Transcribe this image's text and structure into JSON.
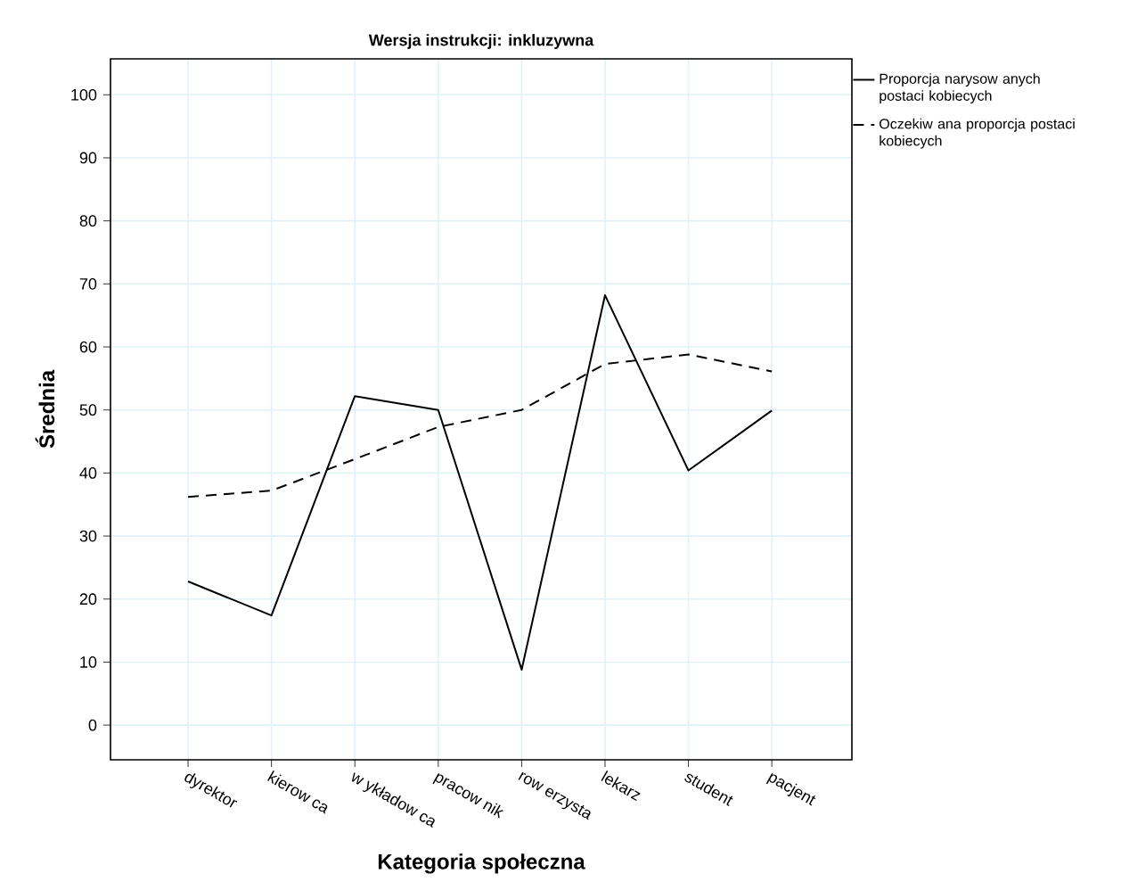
{
  "chart_data": {
    "type": "line",
    "title": "Wersja instrukcji: inkluzywna",
    "xlabel": "Kategoria społeczna",
    "ylabel": "Średnia",
    "categories": [
      "dyrektor",
      "kierow ca",
      "w ykładow ca",
      "pracow nik",
      "row erzysta",
      "lekarz",
      "student",
      "pacjent"
    ],
    "series": [
      {
        "name": "Proporcja narysow anych postaci kobiecych",
        "color": "#000000",
        "line_style": "solid",
        "values": [
          22.8,
          17.4,
          52.2,
          50.0,
          8.8,
          68.2,
          40.4,
          49.9
        ]
      },
      {
        "name": "Oczekiw ana proporcja postaci kobiecych",
        "color": "#000000",
        "line_style": "dashed",
        "values": [
          36.2,
          37.2,
          42.2,
          47.3,
          50.0,
          57.3,
          58.8,
          56.1
        ]
      }
    ],
    "ylim": [
      -5.5,
      105.7
    ],
    "yticks": [
      0,
      10,
      20,
      30,
      40,
      50,
      60,
      70,
      80,
      90,
      100
    ],
    "grid": true,
    "legend": "top right",
    "marker": "none"
  }
}
